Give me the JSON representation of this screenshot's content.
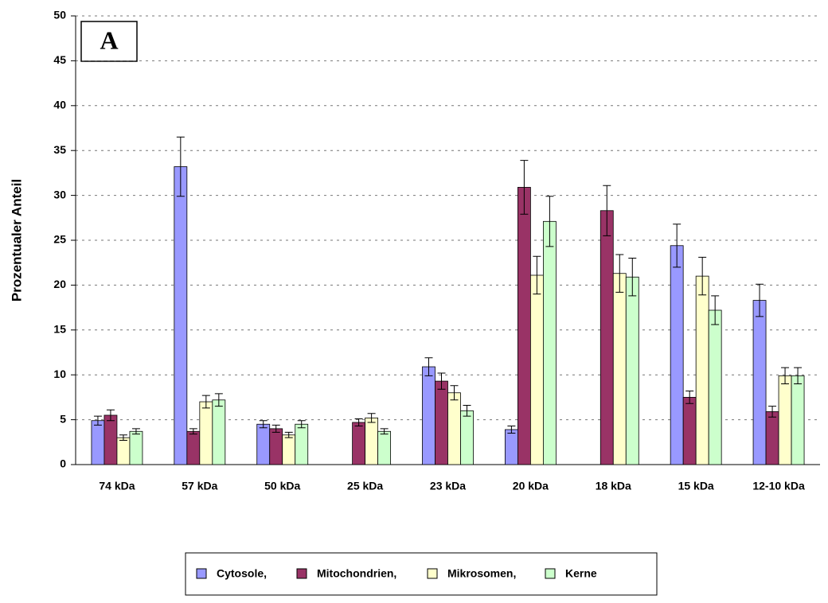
{
  "chart_data": {
    "type": "bar",
    "annotation": "A",
    "y_label": "Prozentualer Anteil",
    "categories": [
      "74 kDa",
      "57 kDa",
      "50 kDa",
      "25 kDa",
      "23 kDa",
      "20 kDa",
      "18 kDa",
      "15 kDa",
      "12-10 kDa"
    ],
    "series": [
      {
        "name": "Cytosole,",
        "color": "#9999ff",
        "values": [
          4.9,
          33.2,
          4.5,
          null,
          10.9,
          3.9,
          null,
          24.4,
          18.3
        ],
        "errors": [
          0.5,
          3.3,
          0.4,
          null,
          1.0,
          0.4,
          null,
          2.4,
          1.8
        ]
      },
      {
        "name": "Mitochondrien,",
        "color": "#993366",
        "values": [
          5.5,
          3.7,
          4.0,
          4.7,
          9.3,
          30.9,
          28.3,
          7.5,
          5.9
        ],
        "errors": [
          0.6,
          0.3,
          0.4,
          0.4,
          0.9,
          3.0,
          2.8,
          0.7,
          0.6
        ]
      },
      {
        "name": "Mikrosomen,",
        "color": "#ffffcc",
        "values": [
          3.0,
          7.0,
          3.3,
          5.2,
          8.0,
          21.1,
          21.3,
          21.0,
          9.9
        ],
        "errors": [
          0.3,
          0.7,
          0.3,
          0.5,
          0.8,
          2.1,
          2.1,
          2.1,
          0.9
        ]
      },
      {
        "name": "Kerne",
        "color": "#ccffcc",
        "values": [
          3.7,
          7.2,
          4.5,
          3.7,
          6.0,
          27.1,
          20.9,
          17.2,
          9.9
        ],
        "errors": [
          0.3,
          0.7,
          0.4,
          0.3,
          0.6,
          2.8,
          2.1,
          1.6,
          0.9
        ]
      }
    ],
    "ylim": [
      0,
      50
    ],
    "yticks": [
      0,
      5,
      10,
      15,
      20,
      25,
      30,
      35,
      40,
      45,
      50
    ],
    "grid": true
  }
}
